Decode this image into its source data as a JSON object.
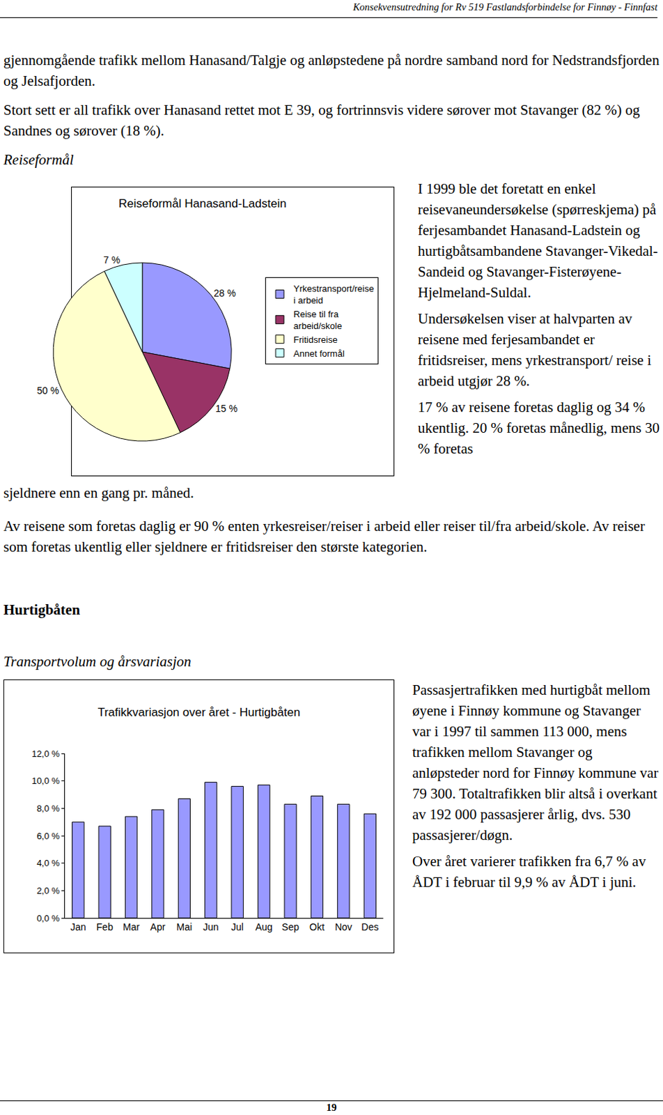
{
  "document": {
    "header": "Konsekvensutredning for Rv 519 Fastlandsforbindelse for Finnøy - Finnfast",
    "paragraphs_top": [
      "gjennomgående trafikk mellom Hanasand/Talgje og anløpstedene på nordre samband nord for Nedstrandsfjorden og Jelsafjorden.",
      "Stort sett er all trafikk over Hanasand rettet mot E 39, og fortrinnsvis videre sørover mot Stavanger (82 %) og Sandnes og sørover (18 %)."
    ],
    "section_pie": "Reiseformål",
    "pie_text": [
      "I 1999 ble det foretatt en enkel reisevaneundersøkelse (spørreskjema) på ferjesambandet Hanasand-Ladstein og hurtigbåtsambandene Stavanger-Vikedal-Sandeid og Stavanger-Fisterøyene-Hjelmeland-Suldal.",
      "Undersøkelsen viser at halvparten av reisene med ferjesambandet er fritidsreiser, mens yrkestransport/ reise i arbeid utgjør 28 %.",
      "17 % av reisene foretas daglig og 34 % ukentlig. 20 % foretas månedlig, mens 30 % foretas"
    ],
    "pie_text_end": "sjeldnere enn en gang pr. måned.",
    "paragraph_after": "Av reisene som foretas daglig er 90 % enten yrkesreiser/reiser i arbeid eller reiser til/fra arbeid/skole. Av reiser som foretas ukentlig eller sjeldnere er fritidsreiser den største kategorien.",
    "heading": "Hurtigbåten",
    "subheading": "Transportvolum og årsvariasjon",
    "bar_text": [
      "Passasjertrafikken med hurtigbåt mellom øyene i Finnøy kommune og Stavanger var i 1997 til sammen 113 000, mens trafikken mellom Stavanger og anløpsteder nord for Finnøy kommune var 79 300. Totaltrafikken blir altså i overkant av 192 000 passasjerer årlig, dvs. 530 passasjerer/døgn.",
      "Over året varierer trafikken fra 6,7 % av ÅDT i februar til 9,9 % av ÅDT i juni."
    ],
    "page_number": "19"
  },
  "chart_data": [
    {
      "type": "pie",
      "title": "Reiseformål Hanasand-Ladstein",
      "categories": [
        "Yrkestransport/reise i arbeid",
        "Reise til fra arbeid/skole",
        "Fritidsreise",
        "Annet formål"
      ],
      "values": [
        28,
        15,
        50,
        7
      ],
      "value_labels": [
        "28 %",
        "15 %",
        "50 %",
        "7 %"
      ],
      "colors": [
        "#9999ff",
        "#993366",
        "#ffffcc",
        "#ccffff"
      ],
      "data_labels": true,
      "legend": "right"
    },
    {
      "type": "bar",
      "title": "Trafikkvariasjon over året - Hurtigbåten",
      "categories": [
        "Jan",
        "Feb",
        "Mar",
        "Apr",
        "Mai",
        "Jun",
        "Jul",
        "Aug",
        "Sep",
        "Okt",
        "Nov",
        "Des"
      ],
      "values": [
        7.0,
        6.7,
        7.4,
        7.9,
        8.7,
        9.9,
        9.6,
        9.7,
        8.3,
        8.9,
        8.3,
        7.6
      ],
      "color": "#9999ff",
      "ylim": [
        0,
        12
      ],
      "yticks": [
        {
          "value": 0,
          "label": "0,0 %"
        },
        {
          "value": 2,
          "label": "2,0 %"
        },
        {
          "value": 4,
          "label": "4,0 %"
        },
        {
          "value": 6,
          "label": "6,0 %"
        },
        {
          "value": 8,
          "label": "8,0 %"
        },
        {
          "value": 10,
          "label": "10,0 %"
        },
        {
          "value": 12,
          "label": "12,0 %"
        }
      ],
      "grid": false
    }
  ]
}
